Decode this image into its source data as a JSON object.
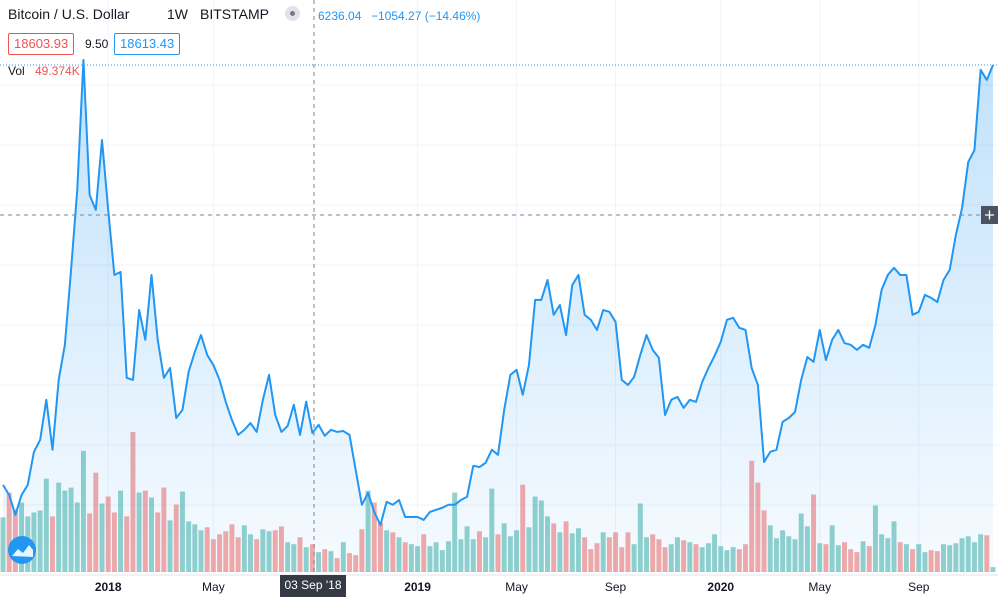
{
  "header": {
    "symbol": "Bitcoin / U.S. Dollar",
    "interval": "1W",
    "exchange": "BITSTAMP",
    "change": "−1054.27 (−14.46%)",
    "bid": "18603.93",
    "spread": "9.50",
    "ask": "18613.43",
    "volume_title": "Vol",
    "volume_value": "49.374K"
  },
  "crosshair": {
    "label": "03 Sep '18"
  },
  "chart_data": {
    "type": "area",
    "line_color": "#2196f3",
    "up_color": "#26a69a",
    "down_color": "#ef5350",
    "grid": true,
    "categories": [
      null,
      null,
      null,
      null,
      null,
      null,
      null,
      null,
      null,
      null,
      null,
      null,
      null,
      null,
      null,
      null,
      null,
      "2018",
      null,
      null,
      null,
      null,
      null,
      null,
      null,
      null,
      null,
      null,
      null,
      null,
      null,
      null,
      null,
      null,
      "May",
      null,
      null,
      null,
      null,
      null,
      null,
      null,
      null,
      null,
      null,
      null,
      null,
      null,
      null,
      null,
      null,
      null,
      null,
      null,
      null,
      null,
      null,
      null,
      null,
      null,
      null,
      null,
      null,
      null,
      null,
      null,
      null,
      "2019",
      null,
      null,
      null,
      null,
      null,
      null,
      null,
      null,
      null,
      null,
      null,
      null,
      null,
      null,
      null,
      "May",
      null,
      null,
      null,
      null,
      null,
      null,
      null,
      null,
      null,
      null,
      null,
      null,
      null,
      null,
      null,
      "Sep",
      null,
      null,
      null,
      null,
      null,
      null,
      null,
      null,
      null,
      null,
      null,
      null,
      null,
      null,
      null,
      null,
      "2020",
      null,
      null,
      null,
      null,
      null,
      null,
      null,
      null,
      null,
      null,
      null,
      null,
      null,
      null,
      null,
      "May",
      null,
      null,
      null,
      null,
      null,
      null,
      null,
      null,
      null,
      null,
      null,
      null,
      null,
      null,
      null,
      "Sep",
      null,
      null,
      null,
      null,
      null,
      null,
      null,
      null,
      null,
      null,
      null,
      null
    ],
    "series": [
      {
        "name": "Price",
        "values": [
          4490,
          4150,
          3480,
          4150,
          4490,
          5600,
          6000,
          7350,
          5670,
          8020,
          9200,
          11720,
          14410,
          18780,
          14240,
          13740,
          16090,
          13740,
          11550,
          11650,
          8090,
          8020,
          10370,
          9370,
          11550,
          9370,
          8090,
          8420,
          6740,
          7010,
          8290,
          8960,
          9530,
          8860,
          8520,
          8020,
          7280,
          6670,
          6170,
          6340,
          6570,
          6270,
          7350,
          8190,
          6840,
          6270,
          6470,
          7180,
          6170,
          7290,
          6236.04,
          6510,
          6140,
          6340,
          6270,
          6300,
          6170,
          4990,
          3820,
          4220,
          3580,
          3140,
          3920,
          3820,
          3980,
          3410,
          3410,
          3410,
          3310,
          3580,
          3650,
          3720,
          3820,
          3820,
          3980,
          4090,
          5130,
          5090,
          5230,
          5670,
          5500,
          7010,
          8190,
          8360,
          7520,
          8520,
          10710,
          10710,
          11380,
          10210,
          10540,
          9530,
          11210,
          11550,
          10210,
          10040,
          9700,
          10370,
          10310,
          9970,
          8020,
          7850,
          8120,
          8860,
          9530,
          9030,
          8760,
          6840,
          7350,
          7450,
          7080,
          7350,
          7280,
          7950,
          8420,
          8830,
          9300,
          10040,
          10110,
          9770,
          9700,
          8420,
          7850,
          5260,
          5600,
          5670,
          6610,
          6740,
          6940,
          8020,
          8790,
          8630,
          9700,
          8690,
          9370,
          9700,
          9260,
          9200,
          9030,
          9200,
          9100,
          9870,
          11050,
          11550,
          11790,
          11550,
          11550,
          10210,
          10310,
          10880,
          10780,
          10640,
          11380,
          11720,
          12900,
          13800,
          15350,
          15750,
          18450,
          18110,
          18610
        ]
      },
      {
        "name": "Vol",
        "values": [
          550,
          800,
          630,
          700,
          560,
          600,
          620,
          940,
          560,
          900,
          820,
          850,
          700,
          1220,
          590,
          1000,
          690,
          760,
          600,
          820,
          560,
          1410,
          800,
          820,
          750,
          600,
          850,
          520,
          680,
          810,
          510,
          480,
          420,
          450,
          330,
          380,
          410,
          480,
          350,
          470,
          380,
          330,
          430,
          410,
          420,
          460,
          300,
          280,
          350,
          250,
          280,
          200,
          230,
          210,
          140,
          300,
          190,
          170,
          430,
          820,
          700,
          500,
          420,
          400,
          350,
          300,
          280,
          260,
          380,
          260,
          300,
          220,
          310,
          800,
          330,
          460,
          330,
          410,
          350,
          840,
          380,
          490,
          360,
          420,
          880,
          450,
          760,
          720,
          560,
          490,
          400,
          510,
          390,
          440,
          350,
          230,
          290,
          400,
          350,
          400,
          250,
          400,
          280,
          690,
          350,
          380,
          330,
          250,
          280,
          350,
          320,
          300,
          280,
          250,
          290,
          380,
          260,
          220,
          250,
          230,
          280,
          1120,
          900,
          620,
          470,
          340,
          420,
          360,
          330,
          590,
          460,
          780,
          290,
          280,
          470,
          270,
          300,
          230,
          200,
          310,
          260,
          670,
          380,
          340,
          510,
          300,
          280,
          230,
          280,
          200,
          220,
          210,
          280,
          270,
          290,
          340,
          360,
          300,
          380,
          370,
          49.374
        ]
      }
    ]
  }
}
